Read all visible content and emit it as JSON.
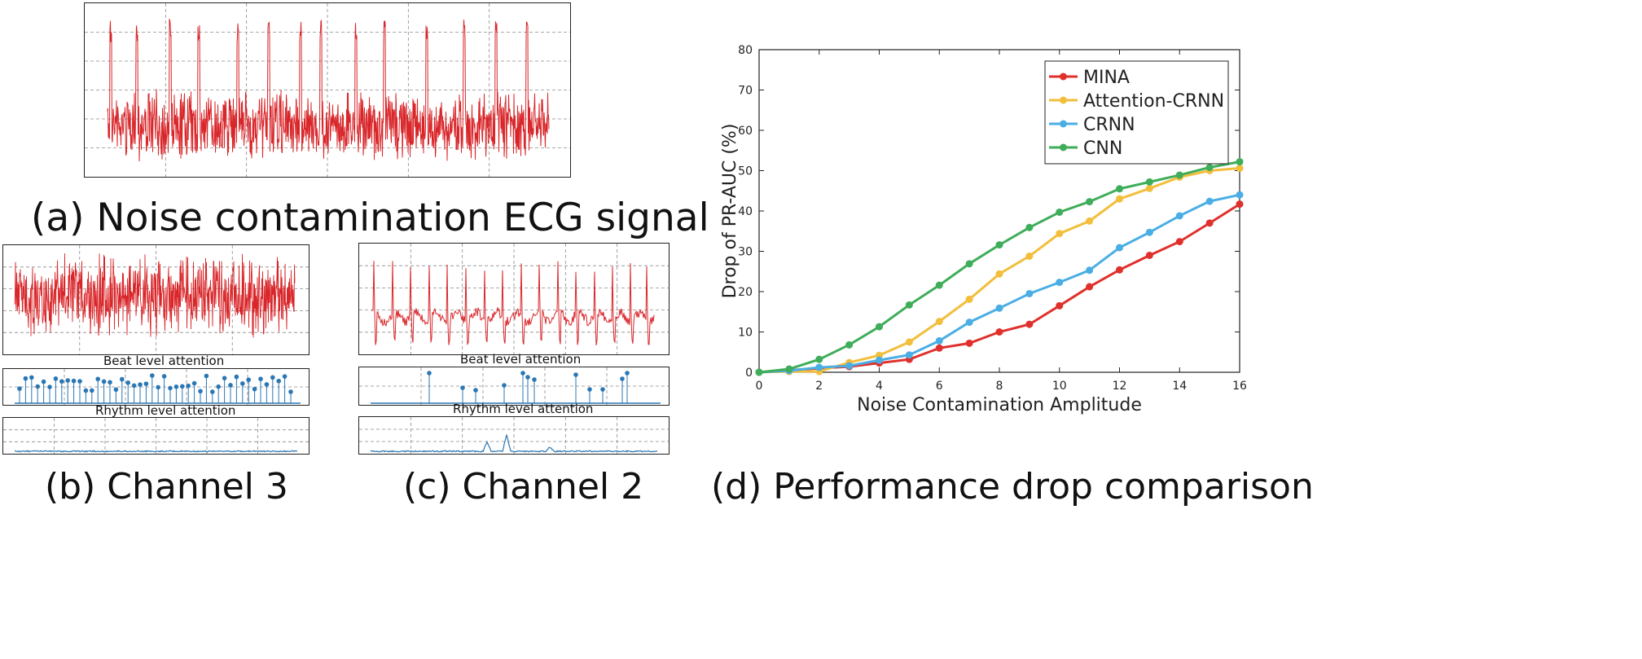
{
  "captions": {
    "a": "(a) Noise contamination ECG signal",
    "b": "(b) Channel 3",
    "c": "(c) Channel 2",
    "d": "(d) Performance drop comparison"
  },
  "panels": {
    "beat_attention_label": "Beat level attention",
    "rhythm_attention_label": "Rhythm level attention"
  },
  "colors": {
    "ecg": "#d9262a",
    "attention": "#2a77b4",
    "grid": "#8a8a8a"
  },
  "chart_data": {
    "type": "line",
    "title": "",
    "xlabel": "Noise Contamination Amplitude",
    "ylabel": "Drop of PR-AUC (%)",
    "xlim": [
      0,
      16
    ],
    "ylim": [
      0,
      80
    ],
    "xticks": [
      0,
      2,
      4,
      6,
      8,
      10,
      12,
      14,
      16
    ],
    "yticks": [
      0,
      10,
      20,
      30,
      40,
      50,
      60,
      70,
      80
    ],
    "grid": false,
    "legend_position": "top-right",
    "x": [
      0,
      1,
      2,
      3,
      4,
      5,
      6,
      7,
      8,
      9,
      10,
      11,
      12,
      13,
      14,
      15,
      16
    ],
    "series": [
      {
        "name": "MINA",
        "color": "#e0302c",
        "values": [
          0,
          0.5,
          1.0,
          1.4,
          2.3,
          3.2,
          6.0,
          7.2,
          10.0,
          11.9,
          16.5,
          21.2,
          25.4,
          29.0,
          32.4,
          37.0,
          41.7
        ]
      },
      {
        "name": "Attention-CRNN",
        "color": "#f2be3b",
        "values": [
          0,
          0.2,
          0.2,
          2.4,
          4.2,
          7.5,
          12.6,
          18.1,
          24.4,
          28.8,
          34.4,
          37.5,
          43.0,
          45.6,
          48.4,
          50.0,
          50.6
        ]
      },
      {
        "name": "CRNN",
        "color": "#4aaee4",
        "values": [
          0,
          0.4,
          1.2,
          1.6,
          3.0,
          4.3,
          7.8,
          12.4,
          15.9,
          19.5,
          22.3,
          25.3,
          30.9,
          34.7,
          38.8,
          42.4,
          44.0
        ]
      },
      {
        "name": "CNN",
        "color": "#3fad5a",
        "values": [
          0,
          0.8,
          3.2,
          6.8,
          11.3,
          16.7,
          21.6,
          26.9,
          31.6,
          35.9,
          39.7,
          42.3,
          45.5,
          47.2,
          48.9,
          50.8,
          52.2
        ]
      }
    ]
  }
}
